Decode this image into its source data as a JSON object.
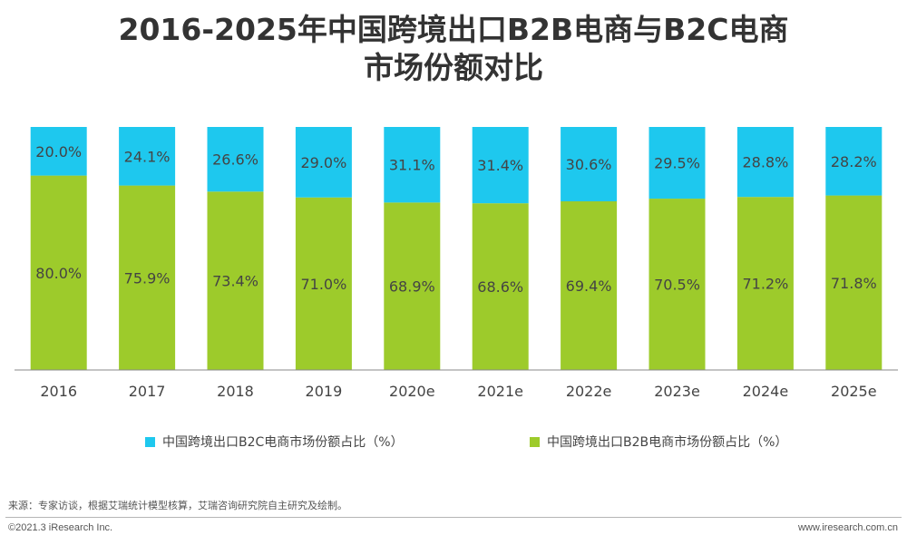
{
  "title_line1": "2016-2025年中国跨境出口B2B电商与B2C电商",
  "title_line2": "市场份额对比",
  "colors": {
    "b2c": "#1EC8EE",
    "b2b": "#9DCB2B",
    "axis": "#888888",
    "label": "#444444"
  },
  "chart_data": {
    "type": "bar",
    "stacked": true,
    "categories": [
      "2016",
      "2017",
      "2018",
      "2019",
      "2020e",
      "2021e",
      "2022e",
      "2023e",
      "2024e",
      "2025e"
    ],
    "series": [
      {
        "name": "中国跨境出口B2B电商市场份额占比（%）",
        "values": [
          80.0,
          75.9,
          73.4,
          71.0,
          68.9,
          68.6,
          69.4,
          70.5,
          71.2,
          71.8
        ],
        "labels": [
          "80.0%",
          "75.9%",
          "73.4%",
          "71.0%",
          "68.9%",
          "68.6%",
          "69.4%",
          "70.5%",
          "71.2%",
          "71.8%"
        ]
      },
      {
        "name": "中国跨境出口B2C电商市场份额占比（%）",
        "values": [
          20.0,
          24.1,
          26.6,
          29.0,
          31.1,
          31.4,
          30.6,
          29.5,
          28.8,
          28.2
        ],
        "labels": [
          "20.0%",
          "24.1%",
          "26.6%",
          "29.0%",
          "31.1%",
          "31.4%",
          "30.6%",
          "29.5%",
          "28.8%",
          "28.2%"
        ]
      }
    ],
    "ylim": [
      0,
      100
    ],
    "grid": false,
    "legend_position": "bottom"
  },
  "legend": {
    "b2c_label": "中国跨境出口B2C电商市场份额占比（%）",
    "b2b_label": "中国跨境出口B2B电商市场份额占比（%）"
  },
  "footer": {
    "source": "来源：专家访谈，根据艾瑞统计模型核算，艾瑞咨询研究院自主研究及绘制。",
    "copyright": "©2021.3 iResearch Inc.",
    "website": "www.iresearch.com.cn"
  }
}
